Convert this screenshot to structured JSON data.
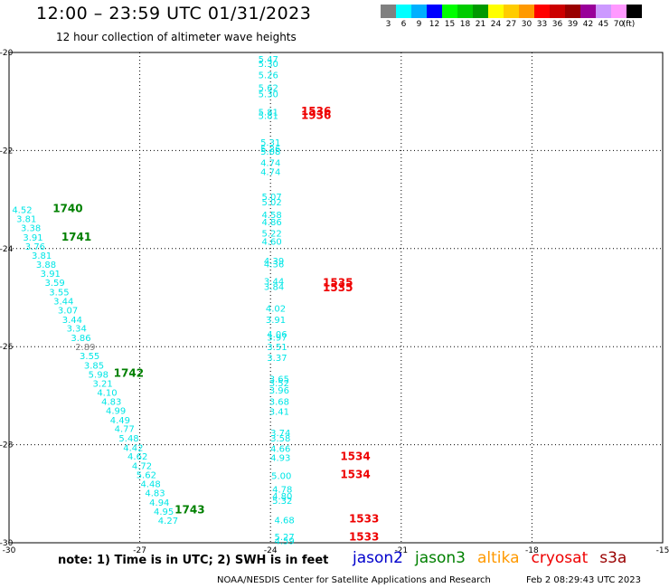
{
  "header": {
    "title": "12:00 – 23:59 UTC 01/31/2023",
    "subtitle": "12 hour collection of altimeter wave heights"
  },
  "legend": {
    "swatches": [
      {
        "color": "#808080",
        "label": "3"
      },
      {
        "color": "#00ffff",
        "label": "6"
      },
      {
        "color": "#00b0ff",
        "label": "9"
      },
      {
        "color": "#0000ff",
        "label": "12"
      },
      {
        "color": "#00ff00",
        "label": "15"
      },
      {
        "color": "#00cc00",
        "label": "18"
      },
      {
        "color": "#009900",
        "label": "21"
      },
      {
        "color": "#ffff00",
        "label": "24"
      },
      {
        "color": "#ffcc00",
        "label": "27"
      },
      {
        "color": "#ff9900",
        "label": "30"
      },
      {
        "color": "#ff0000",
        "label": "33"
      },
      {
        "color": "#cc0000",
        "label": "36"
      },
      {
        "color": "#990000",
        "label": "39"
      },
      {
        "color": "#990099",
        "label": "42"
      },
      {
        "color": "#cc99ff",
        "label": "45"
      },
      {
        "color": "#ff99ff",
        "label": "70"
      },
      {
        "color": "#000000",
        "label": "(ft)"
      }
    ]
  },
  "map": {
    "lat_range": [
      -30,
      -20
    ],
    "lon_range": [
      -30,
      -15
    ],
    "lat_ticks": [
      {
        "value": -20,
        "label": "-20"
      },
      {
        "value": -22,
        "label": "-22"
      },
      {
        "value": -24,
        "label": "-24"
      },
      {
        "value": -26,
        "label": "-26"
      },
      {
        "value": -28,
        "label": "-28"
      },
      {
        "value": -30,
        "label": "-30"
      }
    ],
    "lon_ticks": [
      {
        "value": -30,
        "label": "-30"
      },
      {
        "value": -27,
        "label": "-27"
      },
      {
        "value": -24,
        "label": "-24"
      },
      {
        "value": -21,
        "label": "-21"
      },
      {
        "value": -18,
        "label": "-18"
      },
      {
        "value": -15,
        "label": "-15"
      }
    ],
    "grid": true,
    "colors": {
      "cyan": "#00e6e6",
      "gray": "#808080",
      "red": "#ee0000",
      "green": "#008000"
    },
    "observations": [
      {
        "lon": -24.05,
        "lat": -20.13,
        "label": "5.47",
        "color": "cyan"
      },
      {
        "lon": -24.05,
        "lat": -20.22,
        "label": "5.30",
        "color": "cyan"
      },
      {
        "lon": -24.05,
        "lat": -20.45,
        "label": "5.26",
        "color": "cyan"
      },
      {
        "lon": -24.05,
        "lat": -20.71,
        "label": "5.62",
        "color": "cyan"
      },
      {
        "lon": -24.05,
        "lat": -20.84,
        "label": "5.30",
        "color": "cyan"
      },
      {
        "lon": -24.05,
        "lat": -21.21,
        "label": "5.81",
        "color": "cyan"
      },
      {
        "lon": -24.05,
        "lat": -21.28,
        "label": "5.81",
        "color": "cyan"
      },
      {
        "lon": -24.0,
        "lat": -21.83,
        "label": "5.31",
        "color": "cyan"
      },
      {
        "lon": -24.0,
        "lat": -21.96,
        "label": "5.26",
        "color": "cyan"
      },
      {
        "lon": -24.0,
        "lat": -22.01,
        "label": "5.08",
        "color": "cyan"
      },
      {
        "lon": -24.0,
        "lat": -22.24,
        "label": "4.74",
        "color": "cyan"
      },
      {
        "lon": -24.0,
        "lat": -22.43,
        "label": "4.74",
        "color": "cyan"
      },
      {
        "lon": -23.97,
        "lat": -22.93,
        "label": "5.07",
        "color": "cyan"
      },
      {
        "lon": -23.97,
        "lat": -23.04,
        "label": "5.02",
        "color": "cyan"
      },
      {
        "lon": -23.97,
        "lat": -23.3,
        "label": "4.58",
        "color": "cyan"
      },
      {
        "lon": -23.97,
        "lat": -23.45,
        "label": "4.86",
        "color": "cyan"
      },
      {
        "lon": -23.97,
        "lat": -23.68,
        "label": "5.22",
        "color": "cyan"
      },
      {
        "lon": -23.97,
        "lat": -23.85,
        "label": "4.60",
        "color": "cyan"
      },
      {
        "lon": -23.92,
        "lat": -24.24,
        "label": "4.39",
        "color": "cyan"
      },
      {
        "lon": -23.92,
        "lat": -24.31,
        "label": "4.36",
        "color": "cyan"
      },
      {
        "lon": -23.92,
        "lat": -24.66,
        "label": "3.44",
        "color": "cyan"
      },
      {
        "lon": -23.92,
        "lat": -24.77,
        "label": "3.84",
        "color": "cyan"
      },
      {
        "lon": -23.88,
        "lat": -25.21,
        "label": "4.02",
        "color": "cyan"
      },
      {
        "lon": -23.88,
        "lat": -25.44,
        "label": "3.91",
        "color": "cyan"
      },
      {
        "lon": -23.85,
        "lat": -25.74,
        "label": "4.06",
        "color": "cyan"
      },
      {
        "lon": -23.85,
        "lat": -25.8,
        "label": "3.97",
        "color": "cyan"
      },
      {
        "lon": -23.85,
        "lat": -26.0,
        "label": "3.51",
        "color": "cyan"
      },
      {
        "lon": -23.85,
        "lat": -26.22,
        "label": "3.37",
        "color": "cyan"
      },
      {
        "lon": -23.8,
        "lat": -26.65,
        "label": "3.65",
        "color": "cyan"
      },
      {
        "lon": -23.8,
        "lat": -26.73,
        "label": "3.52",
        "color": "cyan"
      },
      {
        "lon": -23.8,
        "lat": -26.88,
        "label": "3.96",
        "color": "cyan"
      },
      {
        "lon": -23.8,
        "lat": -27.11,
        "label": "3.68",
        "color": "cyan"
      },
      {
        "lon": -23.8,
        "lat": -27.32,
        "label": "3.41",
        "color": "cyan"
      },
      {
        "lon": -23.77,
        "lat": -27.75,
        "label": "3.74",
        "color": "cyan"
      },
      {
        "lon": -23.77,
        "lat": -27.86,
        "label": "3.58",
        "color": "cyan"
      },
      {
        "lon": -23.77,
        "lat": -28.07,
        "label": "4.66",
        "color": "cyan"
      },
      {
        "lon": -23.77,
        "lat": -28.26,
        "label": "4.93",
        "color": "cyan"
      },
      {
        "lon": -23.75,
        "lat": -28.63,
        "label": "5.00",
        "color": "cyan"
      },
      {
        "lon": -23.73,
        "lat": -28.9,
        "label": "4.78",
        "color": "cyan"
      },
      {
        "lon": -23.73,
        "lat": -29.04,
        "label": "4.80",
        "color": "cyan"
      },
      {
        "lon": -23.73,
        "lat": -29.13,
        "label": "5.32",
        "color": "cyan"
      },
      {
        "lon": -23.68,
        "lat": -29.53,
        "label": "4.68",
        "color": "cyan"
      },
      {
        "lon": -23.68,
        "lat": -29.87,
        "label": "5.27",
        "color": "cyan"
      },
      {
        "lon": -23.68,
        "lat": -29.95,
        "label": "4.59",
        "color": "cyan"
      },
      {
        "lon": -29.7,
        "lat": -23.2,
        "label": "4.52",
        "color": "cyan"
      },
      {
        "lon": -29.6,
        "lat": -23.39,
        "label": "3.81",
        "color": "cyan"
      },
      {
        "lon": -29.5,
        "lat": -23.57,
        "label": "3.38",
        "color": "cyan"
      },
      {
        "lon": -29.45,
        "lat": -23.76,
        "label": "3.91",
        "color": "cyan"
      },
      {
        "lon": -29.4,
        "lat": -23.95,
        "label": "3.76",
        "color": "cyan"
      },
      {
        "lon": -29.25,
        "lat": -24.13,
        "label": "3.81",
        "color": "cyan"
      },
      {
        "lon": -29.15,
        "lat": -24.32,
        "label": "3.88",
        "color": "cyan"
      },
      {
        "lon": -29.05,
        "lat": -24.5,
        "label": "3.91",
        "color": "cyan"
      },
      {
        "lon": -28.95,
        "lat": -24.69,
        "label": "3.59",
        "color": "cyan"
      },
      {
        "lon": -28.85,
        "lat": -24.88,
        "label": "3.55",
        "color": "cyan"
      },
      {
        "lon": -28.75,
        "lat": -25.06,
        "label": "3.44",
        "color": "cyan"
      },
      {
        "lon": -28.65,
        "lat": -25.25,
        "label": "3.07",
        "color": "cyan"
      },
      {
        "lon": -28.55,
        "lat": -25.44,
        "label": "3.44",
        "color": "cyan"
      },
      {
        "lon": -28.45,
        "lat": -25.62,
        "label": "3.34",
        "color": "cyan"
      },
      {
        "lon": -28.35,
        "lat": -25.81,
        "label": "3.86",
        "color": "cyan"
      },
      {
        "lon": -28.25,
        "lat": -26.0,
        "label": "2.89",
        "color": "gray"
      },
      {
        "lon": -28.15,
        "lat": -26.18,
        "label": "3.55",
        "color": "cyan"
      },
      {
        "lon": -28.05,
        "lat": -26.37,
        "label": "3.85",
        "color": "cyan"
      },
      {
        "lon": -27.95,
        "lat": -26.56,
        "label": "5.98",
        "color": "cyan"
      },
      {
        "lon": -27.85,
        "lat": -26.74,
        "label": "3.21",
        "color": "cyan"
      },
      {
        "lon": -27.75,
        "lat": -26.93,
        "label": "4.10",
        "color": "cyan"
      },
      {
        "lon": -27.65,
        "lat": -27.11,
        "label": "4.83",
        "color": "cyan"
      },
      {
        "lon": -27.55,
        "lat": -27.3,
        "label": "4.99",
        "color": "cyan"
      },
      {
        "lon": -27.45,
        "lat": -27.49,
        "label": "4.49",
        "color": "cyan"
      },
      {
        "lon": -27.35,
        "lat": -27.67,
        "label": "4.77",
        "color": "cyan"
      },
      {
        "lon": -27.25,
        "lat": -27.86,
        "label": "5.48",
        "color": "cyan"
      },
      {
        "lon": -27.15,
        "lat": -28.05,
        "label": "4.42",
        "color": "cyan"
      },
      {
        "lon": -27.05,
        "lat": -28.23,
        "label": "4.62",
        "color": "cyan"
      },
      {
        "lon": -26.95,
        "lat": -28.42,
        "label": "4.72",
        "color": "cyan"
      },
      {
        "lon": -26.85,
        "lat": -28.61,
        "label": "5.62",
        "color": "cyan"
      },
      {
        "lon": -26.75,
        "lat": -28.79,
        "label": "4.48",
        "color": "cyan"
      },
      {
        "lon": -26.65,
        "lat": -28.98,
        "label": "4.83",
        "color": "cyan"
      },
      {
        "lon": -26.55,
        "lat": -29.17,
        "label": "4.94",
        "color": "cyan"
      },
      {
        "lon": -26.45,
        "lat": -29.35,
        "label": "4.95",
        "color": "cyan"
      },
      {
        "lon": -26.35,
        "lat": -29.54,
        "label": "4.27",
        "color": "cyan"
      }
    ],
    "time_labels": [
      {
        "lon": -23.3,
        "lat": -21.2,
        "label": "1536",
        "color": "red"
      },
      {
        "lon": -23.3,
        "lat": -21.28,
        "label": "1936",
        "color": "red"
      },
      {
        "lon": -22.8,
        "lat": -24.7,
        "label": "1535",
        "color": "red"
      },
      {
        "lon": -22.8,
        "lat": -24.8,
        "label": "1535",
        "color": "red"
      },
      {
        "lon": -22.4,
        "lat": -28.24,
        "label": "1534",
        "color": "red"
      },
      {
        "lon": -22.4,
        "lat": -28.61,
        "label": "1534",
        "color": "red"
      },
      {
        "lon": -22.2,
        "lat": -29.51,
        "label": "1533",
        "color": "red"
      },
      {
        "lon": -22.2,
        "lat": -29.88,
        "label": "1533",
        "color": "red"
      },
      {
        "lon": -29.0,
        "lat": -23.18,
        "label": "1740",
        "color": "green"
      },
      {
        "lon": -28.8,
        "lat": -23.76,
        "label": "1741",
        "color": "green"
      },
      {
        "lon": -27.6,
        "lat": -26.54,
        "label": "1742",
        "color": "green"
      },
      {
        "lon": -26.2,
        "lat": -29.33,
        "label": "1743",
        "color": "green"
      }
    ]
  },
  "footer": {
    "note": "note: 1) Time is in UTC; 2) SWH is in feet",
    "missions": [
      {
        "label": "jason2",
        "color": "#0000cc"
      },
      {
        "label": "jason3",
        "color": "#008000"
      },
      {
        "label": "altika",
        "color": "#ff9900"
      },
      {
        "label": "cryosat",
        "color": "#ee0000"
      },
      {
        "label": "s3a",
        "color": "#990000"
      }
    ],
    "credit": "NOAA/NESDIS Center for Satellite Applications and Research",
    "timestamp": "Feb  2 08:29:43 UTC 2023"
  }
}
